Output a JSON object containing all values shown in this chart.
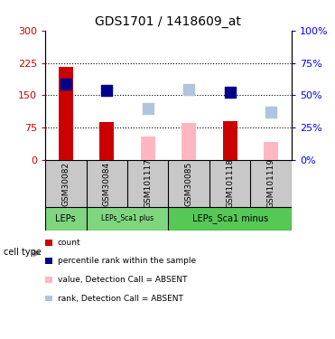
{
  "title": "GDS1701 / 1418609_at",
  "samples": [
    "GSM30082",
    "GSM30084",
    "GSM101117",
    "GSM30085",
    "GSM101118",
    "GSM101119"
  ],
  "red_bars": [
    215,
    88,
    0,
    0,
    90,
    0
  ],
  "pink_bars": [
    0,
    0,
    55,
    85,
    0,
    42
  ],
  "blue_squares": [
    175,
    162,
    0,
    0,
    158,
    0
  ],
  "lightblue_squares": [
    0,
    0,
    120,
    163,
    0,
    110
  ],
  "ylim_left": [
    0,
    300
  ],
  "yticks_left": [
    0,
    75,
    150,
    225,
    300
  ],
  "ytick_labels_left": [
    "0",
    "75",
    "150",
    "225",
    "300"
  ],
  "ytick_labels_right": [
    "0%",
    "25%",
    "50%",
    "75%",
    "100%"
  ],
  "hlines": [
    75,
    150,
    225
  ],
  "legend_items": [
    {
      "color": "#CC0000",
      "label": "count"
    },
    {
      "color": "#00008B",
      "label": "percentile rank within the sample"
    },
    {
      "color": "#FFB6C1",
      "label": "value, Detection Call = ABSENT"
    },
    {
      "color": "#B0C4DE",
      "label": "rank, Detection Call = ABSENT"
    }
  ],
  "bar_width": 0.35,
  "marker_size": 80,
  "red_color": "#CC0000",
  "pink_color": "#FFB6C1",
  "blue_color": "#00008B",
  "lightblue_color": "#B0C4DE",
  "bg_color": "#FFFFFF",
  "tick_label_area_color": "#C8C8C8",
  "cell_type_green_light": "#7FD67F",
  "cell_type_green_dark": "#55C855"
}
